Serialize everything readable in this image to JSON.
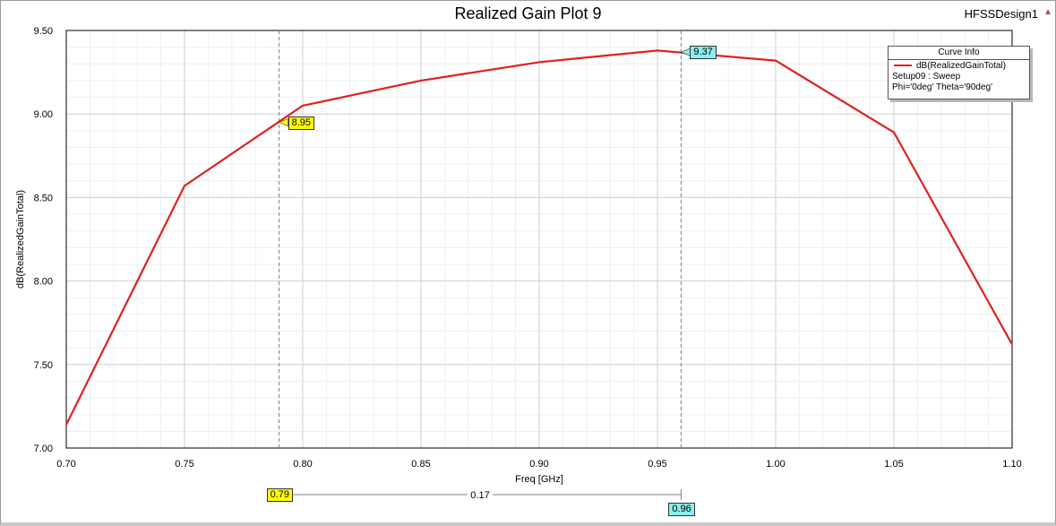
{
  "chart_data": {
    "type": "line",
    "title": "Realized Gain Plot 9",
    "design_name": "HFSSDesign1",
    "xlabel": "Freq [GHz]",
    "ylabel": "dB(RealizedGainTotal)",
    "xlim": [
      0.7,
      1.1
    ],
    "ylim": [
      7.0,
      9.5
    ],
    "x_ticks": [
      "0.70",
      "0.75",
      "0.80",
      "0.85",
      "0.90",
      "0.95",
      "1.00",
      "1.05",
      "1.10"
    ],
    "y_ticks": [
      "7.00",
      "7.50",
      "8.00",
      "8.50",
      "9.00",
      "9.50"
    ],
    "grid": true,
    "legend_position": "top-right",
    "series": [
      {
        "name": "dB(RealizedGainTotal)",
        "color": "#e02020",
        "x": [
          0.7,
          0.75,
          0.8,
          0.85,
          0.9,
          0.95,
          1.0,
          1.05,
          1.1
        ],
        "y": [
          7.14,
          8.57,
          9.05,
          9.2,
          9.31,
          9.38,
          9.32,
          8.89,
          7.62
        ]
      }
    ],
    "legend": {
      "header": "Curve Info",
      "entry": "dB(RealizedGainTotal)",
      "detail1": "Setup09 : Sweep",
      "detail2": "Phi='0deg' Theta='90deg'"
    },
    "markers": [
      {
        "x": 0.79,
        "y": 8.95,
        "label": "8.95",
        "x_label": "0.79",
        "color": "#ffff00"
      },
      {
        "x": 0.96,
        "y": 9.37,
        "label": "9.37",
        "x_label": "0.96",
        "color": "#88eef0"
      }
    ],
    "marker_delta": "0.17"
  }
}
